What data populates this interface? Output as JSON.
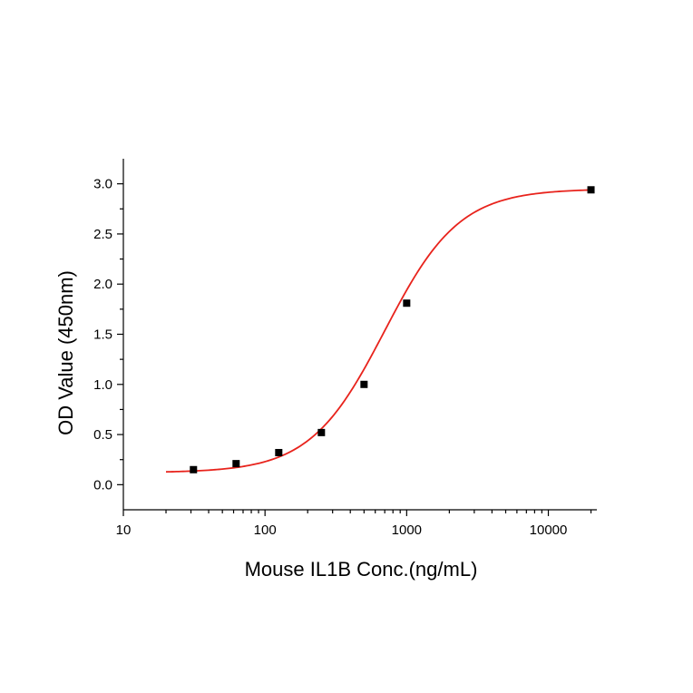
{
  "chart_data": {
    "type": "scatter",
    "title": "",
    "xlabel": "Mouse IL1B Conc.(ng/mL)",
    "ylabel": "OD Value (450nm)",
    "x_scale": "log",
    "xlim": [
      10,
      22000
    ],
    "ylim": [
      -0.25,
      3.25
    ],
    "x_ticks": [
      10,
      100,
      1000,
      10000
    ],
    "x_tick_labels": [
      "10",
      "100",
      "1000",
      "10000"
    ],
    "y_ticks": [
      0.0,
      0.5,
      1.0,
      1.5,
      2.0,
      2.5,
      3.0
    ],
    "y_tick_labels": [
      "0.0",
      "0.5",
      "1.0",
      "1.5",
      "2.0",
      "2.5",
      "3.0"
    ],
    "grid": false,
    "legend": "none",
    "series": [
      {
        "type": "scatter",
        "marker": "square",
        "color": "#000000",
        "x": [
          31.25,
          62.5,
          125,
          250,
          500,
          1000,
          20000
        ],
        "y": [
          0.15,
          0.21,
          0.32,
          0.52,
          1.0,
          1.81,
          2.94
        ]
      },
      {
        "type": "line",
        "fit": "4PL",
        "color": "#e8231c",
        "x_range": [
          20,
          20000
        ],
        "params": {
          "bottom": 0.12,
          "top": 2.95,
          "ec50": 700,
          "hill": 1.65
        }
      }
    ]
  }
}
